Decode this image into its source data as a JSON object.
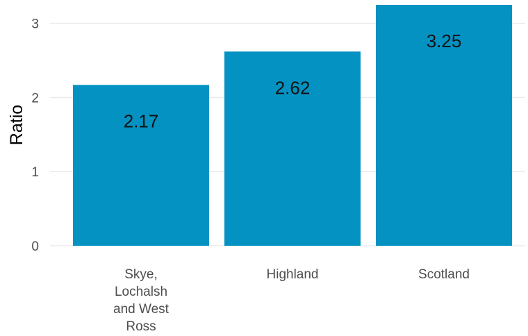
{
  "chart_data": {
    "type": "bar",
    "categories": [
      [
        "Skye,",
        "Lochalsh",
        "and West",
        "Ross"
      ],
      [
        "Highland"
      ],
      [
        "Scotland"
      ]
    ],
    "values": [
      2.17,
      2.62,
      3.25
    ],
    "data_labels": [
      "2.17",
      "2.62",
      "3.25"
    ],
    "title": "",
    "xlabel": "",
    "ylabel": "Ratio",
    "ylim": [
      0,
      3.25
    ],
    "yticks": [
      0,
      1,
      2,
      3
    ],
    "ytick_labels": [
      "0",
      "1",
      "2",
      "3"
    ],
    "grid": "horizontal",
    "legend": "none",
    "colors": {
      "bar": "#0492c2",
      "gridline": "#ebebeb",
      "tick_text": "#4d4d4d",
      "label_text": "#111111"
    }
  }
}
